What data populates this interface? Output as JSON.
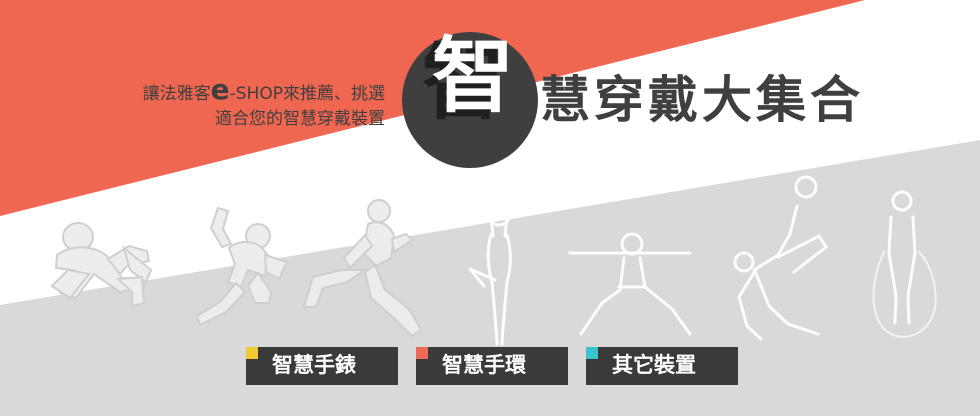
{
  "banner": {
    "subtitle_line_1_before_brand": "讓法雅客",
    "subtitle_brand_mark": "e",
    "subtitle_line_1_after_brand": "-SHOP來推薦、挑選",
    "subtitle_line_2": "適合您的智慧穿戴裝置",
    "title_first_char": "智",
    "title_rest": "慧穿戴大集合"
  },
  "buttons": [
    {
      "label": "智慧手錶"
    },
    {
      "label": "智慧手環"
    },
    {
      "label": "其它裝置"
    }
  ],
  "colors": {
    "background": "#ffffff",
    "accent_red": "#ef6651",
    "accent_gray": "#d9d9d9",
    "text_dark": "#3f3f3f",
    "button_dark": "#3a3a3a",
    "tag_yellow": "#f1c933",
    "tag_red": "#ee6b57",
    "tag_cyan": "#3ac2cf"
  }
}
